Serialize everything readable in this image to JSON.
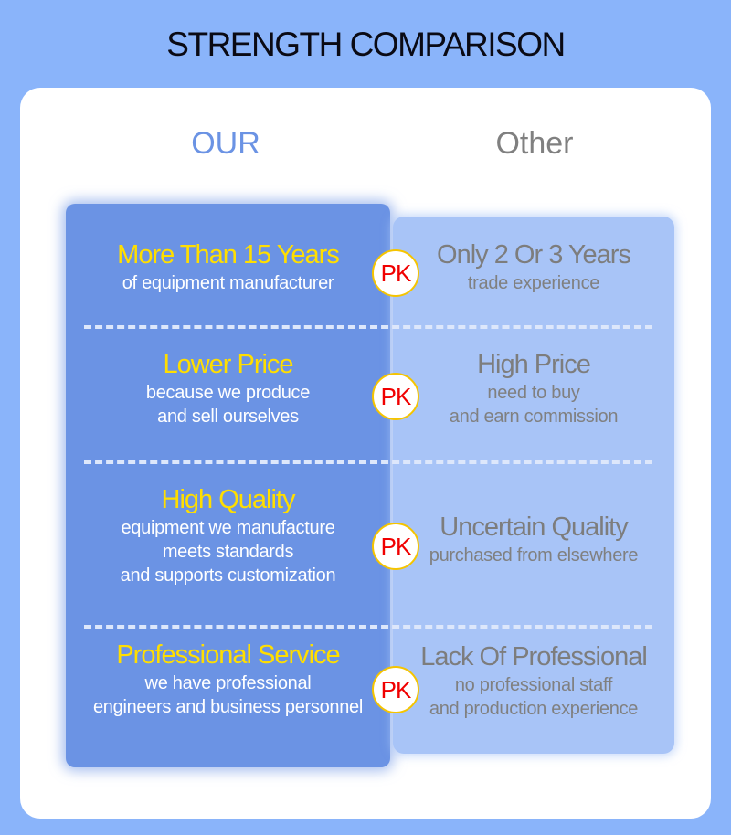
{
  "title": "STRENGTH COMPARISON",
  "columns": {
    "our": "OUR",
    "other": "Other"
  },
  "pk_label": "PK",
  "colors": {
    "background": "#8ab4fa",
    "our_panel": "#6b93e4",
    "other_panel": "#a8c4f7",
    "our_heading": "#ffde00",
    "pk_text": "#f00000"
  },
  "rows": [
    {
      "our": {
        "heading": "More Than 15 Years",
        "lines": [
          "of equipment manufacturer"
        ]
      },
      "other": {
        "heading": "Only 2 Or 3 Years",
        "lines": [
          "trade experience"
        ]
      }
    },
    {
      "our": {
        "heading": "Lower Price",
        "lines": [
          "because we produce",
          "and sell ourselves"
        ]
      },
      "other": {
        "heading": "High Price",
        "lines": [
          "need to buy",
          "and earn commission"
        ]
      }
    },
    {
      "our": {
        "heading": "High Quality",
        "lines": [
          "equipment we manufacture",
          "meets standards",
          "and supports customization"
        ]
      },
      "other": {
        "heading": "Uncertain Quality",
        "lines": [
          "purchased from elsewhere"
        ]
      }
    },
    {
      "our": {
        "heading": "Professional Service",
        "lines": [
          "we have professional",
          "engineers and business personnel"
        ]
      },
      "other": {
        "heading": "Lack Of Professional",
        "lines": [
          "no professional staff",
          "and production experience"
        ]
      }
    }
  ]
}
